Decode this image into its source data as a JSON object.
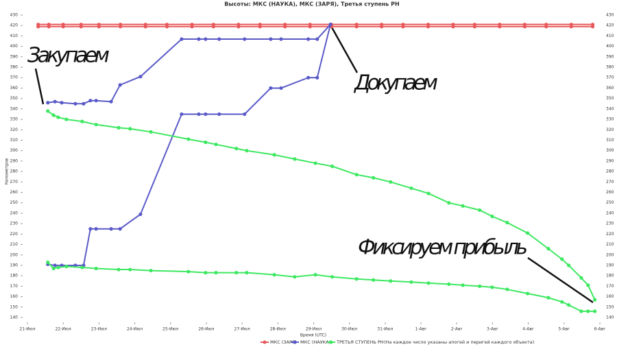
{
  "chart_data": {
    "type": "line",
    "title": "Высоты: МКС (НАУКА), МКС (ЗАРЯ), Третья ступень РН",
    "y_label": "Километров",
    "x_label": "Время (UTC)",
    "note": "(На каждое число указаны апогей и перигей каждого объекта)",
    "annotations": [
      {
        "text": "Закупаем"
      },
      {
        "text": "Докупаем"
      },
      {
        "text": "Фиксируем прибыль"
      }
    ],
    "xlim": [
      0,
      16
    ],
    "xticks": [
      {
        "value": 0,
        "label": "21-Июл"
      },
      {
        "value": 1,
        "label": "22-Июл"
      },
      {
        "value": 2,
        "label": "23-Июл"
      },
      {
        "value": 3,
        "label": "24-Июл"
      },
      {
        "value": 4,
        "label": "25-Июл"
      },
      {
        "value": 5,
        "label": "26-Июл"
      },
      {
        "value": 6,
        "label": "27-Июл"
      },
      {
        "value": 7,
        "label": "28-Июл"
      },
      {
        "value": 8,
        "label": "29-Июл"
      },
      {
        "value": 9,
        "label": "30-Июл"
      },
      {
        "value": 10,
        "label": "31-Июл"
      },
      {
        "value": 11,
        "label": "1-Авг"
      },
      {
        "value": 12,
        "label": "2-Авг"
      },
      {
        "value": 13,
        "label": "3-Авг"
      },
      {
        "value": 14,
        "label": "4-Авг"
      },
      {
        "value": 15,
        "label": "5-Авг"
      },
      {
        "value": 16,
        "label": "6-Авг"
      }
    ],
    "ylim": [
      140,
      430
    ],
    "yticks": [
      140,
      150,
      160,
      170,
      180,
      190,
      200,
      210,
      220,
      230,
      240,
      250,
      260,
      270,
      280,
      290,
      300,
      310,
      320,
      330,
      340,
      350,
      360,
      370,
      380,
      390,
      400,
      410,
      420,
      430
    ],
    "series": [
      {
        "name": "МКС (ЗАРЯ)",
        "color": "#e8585a",
        "x": [
          0.3,
          0.6,
          1,
          1.5,
          2,
          2.6,
          3.3,
          3.9,
          4.6,
          5.2,
          5.9,
          6.5,
          7.2,
          7.9,
          8.5,
          9.2,
          9.9,
          10.5,
          11.2,
          11.9,
          12.5,
          13.2,
          13.9,
          14.5,
          15.2,
          15.8
        ],
        "high": [
          421,
          421,
          421,
          421,
          421,
          421,
          421,
          421,
          421,
          421,
          421,
          421,
          421,
          421,
          421,
          421,
          421,
          421,
          421,
          421,
          421,
          421,
          421,
          421,
          421,
          421
        ],
        "low": [
          419,
          419,
          419,
          419,
          419,
          419,
          419,
          419,
          419,
          419,
          419,
          419,
          419,
          419,
          419,
          419,
          419,
          419,
          419,
          419,
          419,
          419,
          419,
          419,
          419,
          419
        ]
      },
      {
        "name": "МКС (НАУКА)",
        "color": "#5a5ac8",
        "x": [
          0.57,
          0.77,
          0.96,
          1.34,
          1.57,
          1.76,
          1.92,
          2.34,
          2.59,
          3.16,
          4.31,
          4.79,
          4.98,
          5.36,
          6.07,
          6.8,
          7.09,
          7.85,
          8.1,
          8.47
        ],
        "high": [
          346,
          347,
          346,
          345,
          345,
          348,
          348,
          347,
          363,
          371,
          407,
          407,
          407,
          407,
          407,
          407,
          407,
          407,
          407,
          421
        ],
        "low": [
          191,
          190,
          190,
          190,
          190,
          225,
          225,
          225,
          225,
          239,
          335,
          335,
          335,
          335,
          335,
          360,
          360,
          370,
          370,
          421
        ]
      },
      {
        "name": "ТРЕТЬЯ СТУПЕНЬ РН",
        "color": "#3ce860",
        "x": [
          0.57,
          0.73,
          0.86,
          1.09,
          1.53,
          1.92,
          2.55,
          2.87,
          3.45,
          4.5,
          4.98,
          5.27,
          5.84,
          6.13,
          6.9,
          7.47,
          8.05,
          8.52,
          9.2,
          9.67,
          10.15,
          10.73,
          11.21,
          11.78,
          12.17,
          12.64,
          12.99,
          13.41,
          13.98,
          14.56,
          14.94,
          15.13,
          15.48,
          15.67,
          15.86
        ],
        "high": [
          338,
          334,
          332,
          330,
          328,
          325,
          322,
          321,
          318,
          311,
          308,
          306,
          302,
          300,
          296,
          292,
          288,
          285,
          277,
          274,
          270,
          264,
          259,
          250,
          247,
          243,
          237,
          231,
          221,
          206,
          196,
          190,
          178,
          171,
          157
        ],
        "low": [
          193,
          187,
          188,
          189,
          188,
          187,
          186,
          186,
          185,
          184,
          183,
          183,
          183,
          183,
          181,
          179,
          181,
          179,
          177,
          176,
          175,
          174,
          173,
          172,
          171,
          170,
          169,
          167,
          163,
          159,
          155,
          152,
          146,
          146,
          146
        ]
      }
    ]
  }
}
